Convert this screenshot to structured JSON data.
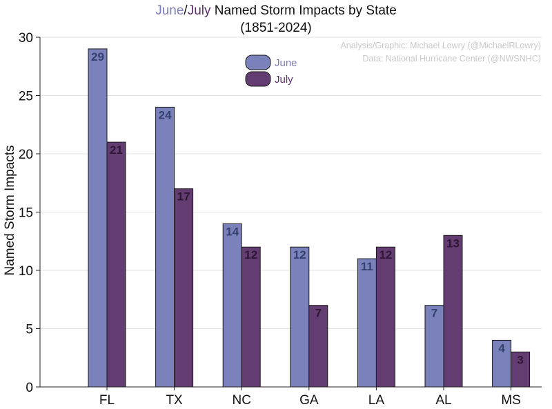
{
  "title": {
    "june_word": "June",
    "slash": "/",
    "july_word": "July",
    "rest": " Named Storm Impacts by State",
    "subtitle": "(1851-2024)"
  },
  "credits": {
    "line1": "Analysis/Graphic: Michael Lowry (@MichaelRLowry)",
    "line2": "Data: National Hurricane Center (@NWSNHC)"
  },
  "colors": {
    "june_fill": "#7b82bb",
    "june_label": "#34406f",
    "june_title": "#7b7cb8",
    "july_fill": "#633c72",
    "july_label": "#2e1636",
    "july_title": "#5b2d6b",
    "grid": "#e3e3e3",
    "axis": "#222222"
  },
  "chart_data": {
    "type": "bar",
    "categories": [
      "FL",
      "TX",
      "NC",
      "GA",
      "LA",
      "AL",
      "MS"
    ],
    "series": [
      {
        "name": "June",
        "values": [
          29,
          24,
          14,
          12,
          11,
          7,
          4
        ]
      },
      {
        "name": "July",
        "values": [
          21,
          17,
          12,
          7,
          12,
          13,
          3
        ]
      }
    ],
    "ylabel": "Named Storm Impacts",
    "xlabel": "",
    "ylim": [
      0,
      30
    ],
    "yticks": [
      0,
      5,
      10,
      15,
      20,
      25,
      30
    ],
    "grid": true,
    "legend_position": "top-center",
    "data_labels": true
  }
}
